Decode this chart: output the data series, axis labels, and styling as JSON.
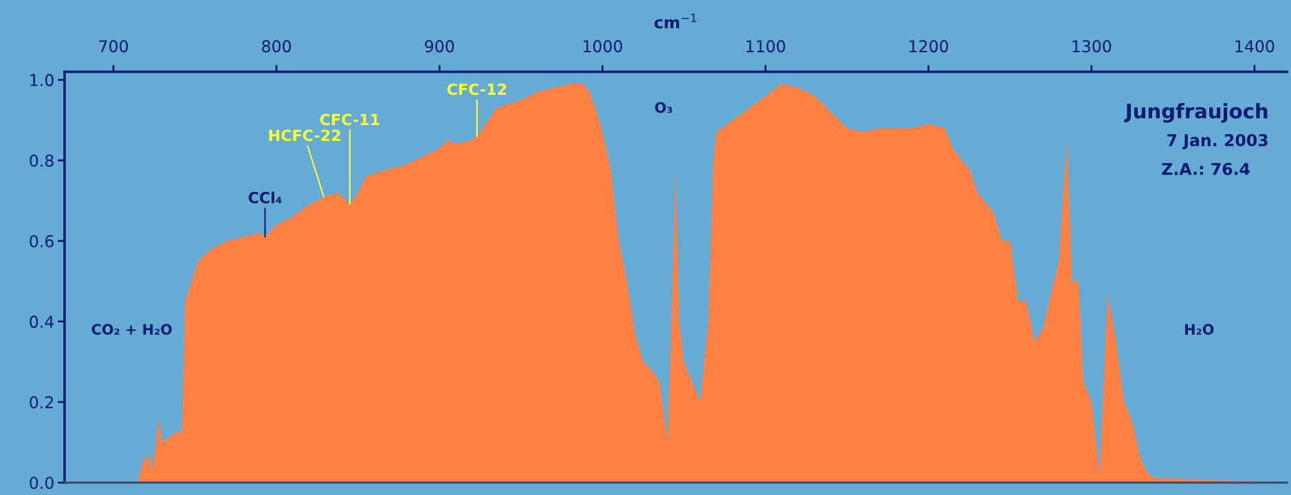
{
  "chart_data": {
    "type": "area",
    "title": "Jungfraujoch",
    "subtitle": "7 Jan. 2003",
    "xlabel": "cm$^{−1}$",
    "x": [
      670,
      715,
      718,
      722,
      724,
      728,
      730,
      740,
      742,
      744,
      748,
      752,
      760,
      770,
      780,
      790,
      793,
      800,
      810,
      820,
      830,
      838,
      845,
      850,
      855,
      870,
      880,
      890,
      900,
      905,
      910,
      920,
      925,
      935,
      950,
      960,
      970,
      980,
      988,
      992,
      998,
      1005,
      1010,
      1015,
      1020,
      1025,
      1030,
      1035,
      1040,
      1043,
      1045,
      1047,
      1050,
      1055,
      1060,
      1065,
      1068,
      1070,
      1080,
      1090,
      1100,
      1110,
      1120,
      1130,
      1140,
      1150,
      1160,
      1170,
      1180,
      1190,
      1200,
      1210,
      1215,
      1220,
      1225,
      1230,
      1240,
      1245,
      1250,
      1255,
      1260,
      1265,
      1270,
      1280,
      1285,
      1288,
      1292,
      1295,
      1300,
      1305,
      1310,
      1315,
      1320,
      1325,
      1330,
      1335,
      1340,
      1350,
      1420
    ],
    "series": [
      {
        "color": "#ff8040",
        "values": [
          0.0,
          0.0,
          0.05,
          0.07,
          0.03,
          0.16,
          0.1,
          0.13,
          0.12,
          0.45,
          0.5,
          0.55,
          0.58,
          0.6,
          0.61,
          0.62,
          0.61,
          0.64,
          0.66,
          0.69,
          0.71,
          0.72,
          0.69,
          0.72,
          0.76,
          0.78,
          0.79,
          0.81,
          0.83,
          0.85,
          0.84,
          0.85,
          0.87,
          0.93,
          0.95,
          0.97,
          0.98,
          0.99,
          0.99,
          0.97,
          0.9,
          0.78,
          0.6,
          0.5,
          0.37,
          0.3,
          0.28,
          0.25,
          0.1,
          0.5,
          0.78,
          0.4,
          0.3,
          0.25,
          0.2,
          0.4,
          0.8,
          0.87,
          0.9,
          0.93,
          0.96,
          0.99,
          0.98,
          0.96,
          0.92,
          0.88,
          0.87,
          0.88,
          0.88,
          0.88,
          0.89,
          0.88,
          0.83,
          0.8,
          0.78,
          0.72,
          0.67,
          0.6,
          0.6,
          0.45,
          0.45,
          0.35,
          0.38,
          0.55,
          0.85,
          0.5,
          0.5,
          0.25,
          0.2,
          0.02,
          0.47,
          0.35,
          0.2,
          0.15,
          0.06,
          0.02,
          0.01,
          0.01,
          0.0
        ]
      }
    ],
    "xlim": [
      670,
      1420
    ],
    "xticks": [
      700,
      800,
      900,
      1000,
      1100,
      1200,
      1300,
      1400
    ],
    "ylim": [
      0,
      1.02
    ],
    "yticks": [
      {
        "value": 0,
        "label": "0.0"
      },
      {
        "value": 0.2,
        "label": "0.2"
      },
      {
        "value": 0.4,
        "label": "0.4"
      },
      {
        "value": 0.6,
        "label": "0.6"
      },
      {
        "value": 0.8,
        "label": "0.8"
      },
      {
        "value": 1,
        "label": "1.0"
      }
    ],
    "grid": false,
    "legend": false,
    "annotations": [
      {
        "text": "CCl₄",
        "x": 793,
        "y": 0.61
      },
      {
        "text": "HCFC-22",
        "x": 829,
        "y": 0.71
      },
      {
        "text": "CFC-11",
        "x": 845,
        "y": 0.69
      },
      {
        "text": "CFC-12",
        "x": 923,
        "y": 0.86
      },
      "O₃",
      "CO₂ + H₂O",
      "H₂O",
      "Z.A.: 76.4"
    ]
  }
}
